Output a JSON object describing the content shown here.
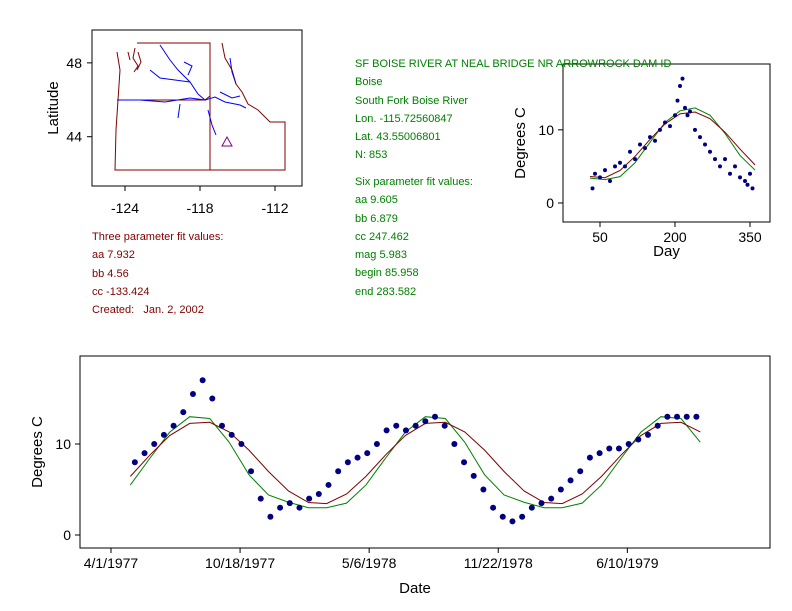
{
  "map": {
    "ylabel": "Latitude",
    "xlim": [
      -126.64,
      -109.84
    ],
    "ylim": [
      41.33,
      49.78
    ],
    "xticks": [
      -124,
      -118,
      -112
    ],
    "yticks": [
      44,
      48
    ]
  },
  "three_param": [
    "Three parameter fit values:",
    "aa 7.932",
    "bb 4.56",
    "cc -133.424",
    "Created:   Jan. 2, 2002"
  ],
  "station": [
    "SF BOISE RIVER AT NEAL BRIDGE NR ARROWROCK DAM ID",
    "Boise",
    "South Fork Boise River",
    "Lon. -115.72560847",
    "Lat. 43.55006801",
    "N: 853"
  ],
  "six_param": [
    "Six parameter fit values:",
    "aa 9.605",
    "bb 6.879",
    "cc 247.462",
    "mag 5.983",
    "begin 85.958",
    "end 283.582"
  ],
  "chart_data": [
    {
      "type": "scatter",
      "xlabel": "Day",
      "ylabel": "Degrees C",
      "xlim": [
        -24,
        390
      ],
      "ylim": [
        -2.6,
        19
      ],
      "xticks": [
        50,
        200,
        350
      ],
      "yticks": [
        0,
        10
      ],
      "x": [
        35,
        40,
        50,
        60,
        70,
        80,
        90,
        100,
        110,
        120,
        130,
        140,
        150,
        160,
        170,
        180,
        190,
        200,
        205,
        210,
        215,
        220,
        225,
        230,
        240,
        250,
        260,
        270,
        280,
        290,
        300,
        310,
        320,
        330,
        340,
        345,
        350,
        355
      ],
      "series": [
        {
          "color": "#000080",
          "values": [
            2,
            4,
            3.5,
            4.5,
            3,
            5,
            5.5,
            5,
            7,
            6,
            8,
            7.5,
            9,
            8.5,
            10,
            11,
            10.5,
            12,
            14,
            16,
            17,
            13,
            12,
            12.5,
            10,
            9,
            8,
            7,
            6,
            5,
            6,
            4,
            5,
            3.5,
            3,
            2.5,
            4,
            2
          ]
        }
      ],
      "fits": [
        {
          "color": "#008000",
          "x": [
            30,
            60,
            90,
            120,
            150,
            180,
            210,
            240,
            270,
            300,
            330,
            360
          ],
          "values": [
            3.4,
            3.2,
            3.6,
            5.5,
            8.3,
            11.0,
            12.6,
            13.0,
            12.0,
            9.5,
            6.5,
            4.5
          ]
        },
        {
          "color": "#800000",
          "x": [
            30,
            60,
            90,
            120,
            150,
            180,
            210,
            240,
            270,
            300,
            330,
            360
          ],
          "values": [
            3.62,
            3.45,
            4.45,
            6.36,
            8.69,
            10.81,
            12.18,
            12.44,
            11.53,
            9.68,
            7.37,
            5.21
          ]
        }
      ]
    },
    {
      "type": "scatter",
      "xlabel": "Date",
      "ylabel": "Degrees C",
      "xlim": [
        "1977-02-12",
        "1980-01-17"
      ],
      "ylim": [
        -1.43,
        19.67
      ],
      "xticks": [
        {
          "value": "1977-04-01",
          "label": "4/1/1977"
        },
        {
          "value": "1977-10-18",
          "label": "10/18/1977"
        },
        {
          "value": "1978-05-06",
          "label": "5/6/1978"
        },
        {
          "value": "1978-11-22",
          "label": "11/22/1978"
        },
        {
          "value": "1979-06-10",
          "label": "6/10/1979"
        }
      ],
      "yticks": [
        0,
        10
      ],
      "x": [
        "1977-05-08",
        "1977-05-23",
        "1977-06-07",
        "1977-06-22",
        "1977-07-07",
        "1977-07-22",
        "1977-08-06",
        "1977-08-21",
        "1977-09-05",
        "1977-09-20",
        "1977-10-05",
        "1977-10-20",
        "1977-11-04",
        "1977-11-19",
        "1977-12-04",
        "1977-12-19",
        "1978-01-03",
        "1978-01-18",
        "1978-02-02",
        "1978-02-17",
        "1978-03-04",
        "1978-03-19",
        "1978-04-03",
        "1978-04-18",
        "1978-05-03",
        "1978-05-18",
        "1978-06-02",
        "1978-06-17",
        "1978-07-02",
        "1978-07-17",
        "1978-08-01",
        "1978-08-16",
        "1978-08-31",
        "1978-09-15",
        "1978-09-30",
        "1978-10-15",
        "1978-10-30",
        "1978-11-14",
        "1978-11-29",
        "1978-12-14",
        "1978-12-29",
        "1979-01-13",
        "1979-01-28",
        "1979-02-12",
        "1979-02-27",
        "1979-03-14",
        "1979-03-29",
        "1979-04-13",
        "1979-04-28",
        "1979-05-13",
        "1979-05-28",
        "1979-06-12",
        "1979-06-27",
        "1979-07-12",
        "1979-07-27",
        "1979-08-11",
        "1979-08-26",
        "1979-09-10",
        "1979-09-25"
      ],
      "series": [
        {
          "color": "#000080",
          "values": [
            8,
            9,
            10,
            11,
            12,
            13.5,
            15.5,
            17,
            15,
            12,
            11,
            10,
            7,
            4,
            2,
            3,
            3.5,
            3,
            4,
            4.5,
            5.5,
            7,
            8,
            8.5,
            9,
            10,
            11.5,
            12,
            11.5,
            12,
            12.5,
            13,
            12,
            10,
            8,
            6.5,
            5,
            3,
            2,
            1.5,
            2,
            3,
            3.5,
            4,
            5,
            6,
            7,
            8.5,
            9,
            9.5,
            9.5,
            10,
            10.5,
            11,
            12,
            13,
            13,
            13,
            13
          ]
        }
      ],
      "fits": [
        {
          "color": "#008000",
          "x": [
            "1977-05-01",
            "1977-06-01",
            "1977-07-01",
            "1977-08-01",
            "1977-09-01",
            "1977-10-01",
            "1977-11-01",
            "1977-12-01",
            "1978-01-01",
            "1978-02-01",
            "1978-03-01",
            "1978-04-01",
            "1978-05-01",
            "1978-06-01",
            "1978-07-01",
            "1978-08-01",
            "1978-09-01",
            "1978-10-01",
            "1978-11-01",
            "1978-12-01",
            "1979-01-01",
            "1979-02-01",
            "1979-03-01",
            "1979-04-01",
            "1979-05-01",
            "1979-06-01",
            "1979-07-01",
            "1979-08-01",
            "1979-09-01",
            "1979-10-01"
          ],
          "values": [
            5.5,
            8.5,
            11.3,
            13.0,
            12.8,
            10.2,
            6.6,
            4.4,
            3.6,
            3.0,
            3.0,
            3.5,
            5.5,
            8.5,
            11.3,
            13.0,
            12.8,
            10.2,
            6.6,
            4.4,
            3.6,
            3.0,
            3.0,
            3.5,
            5.5,
            8.5,
            11.3,
            13.0,
            12.8,
            10.2
          ]
        },
        {
          "color": "#800000",
          "x": [
            "1977-05-01",
            "1977-06-01",
            "1977-07-01",
            "1977-08-01",
            "1977-09-01",
            "1977-10-01",
            "1977-11-01",
            "1977-12-01",
            "1978-01-01",
            "1978-02-01",
            "1978-03-01",
            "1978-04-01",
            "1978-05-01",
            "1978-06-01",
            "1978-07-01",
            "1978-08-01",
            "1978-09-01",
            "1978-10-01",
            "1978-11-01",
            "1978-12-01",
            "1979-01-01",
            "1979-02-01",
            "1979-03-01",
            "1979-04-01",
            "1979-05-01",
            "1979-06-01",
            "1979-07-01",
            "1979-08-01",
            "1979-09-01",
            "1979-10-01"
          ],
          "values": [
            6.44,
            8.84,
            10.93,
            12.26,
            12.39,
            11.33,
            9.31,
            6.98,
            4.84,
            3.57,
            3.45,
            4.51,
            6.44,
            8.84,
            10.93,
            12.26,
            12.39,
            11.33,
            9.31,
            6.98,
            4.84,
            3.57,
            3.45,
            4.51,
            6.44,
            8.84,
            10.93,
            12.26,
            12.39,
            11.33
          ]
        }
      ]
    }
  ]
}
